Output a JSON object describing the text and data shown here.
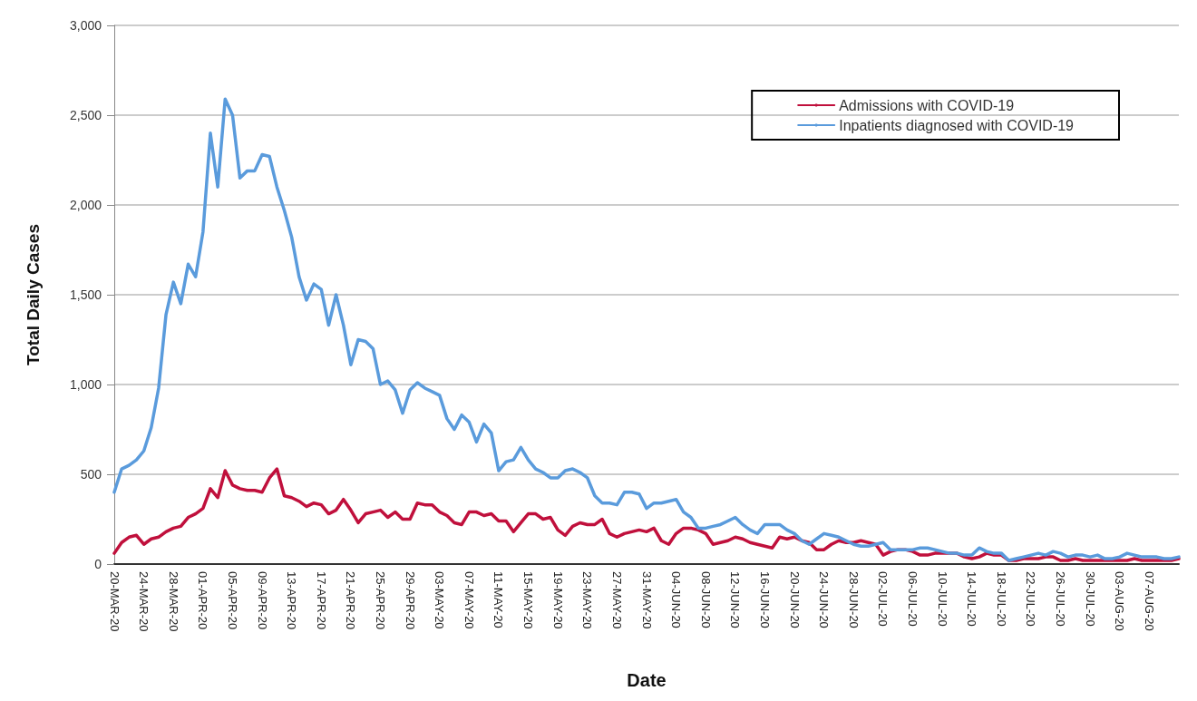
{
  "chart_data": {
    "type": "line",
    "xlabel": "Date",
    "ylabel": "Total Daily Cases",
    "categories": [
      "20-MAR-20",
      null,
      null,
      null,
      "24-MAR-20",
      null,
      null,
      null,
      "28-MAR-20",
      null,
      null,
      null,
      "01-APR-20",
      null,
      null,
      null,
      "05-APR-20",
      null,
      null,
      null,
      "09-APR-20",
      null,
      null,
      null,
      "13-APR-20",
      null,
      null,
      null,
      "17-APR-20",
      null,
      null,
      null,
      "21-APR-20",
      null,
      null,
      null,
      "25-APR-20",
      null,
      null,
      null,
      "29-APR-20",
      null,
      null,
      null,
      "03-MAY-20",
      null,
      null,
      null,
      "07-MAY-20",
      null,
      null,
      null,
      "11-MAY-20",
      null,
      null,
      null,
      "15-MAY-20",
      null,
      null,
      null,
      "19-MAY-20",
      null,
      null,
      null,
      "23-MAY-20",
      null,
      null,
      null,
      "27-MAY-20",
      null,
      null,
      null,
      "31-MAY-20",
      null,
      null,
      null,
      "04-JUN-20",
      null,
      null,
      null,
      "08-JUN-20",
      null,
      null,
      null,
      "12-JUN-20",
      null,
      null,
      null,
      "16-JUN-20",
      null,
      null,
      null,
      "20-JUN-20",
      null,
      null,
      null,
      "24-JUN-20",
      null,
      null,
      null,
      "28-JUN-20",
      null,
      null,
      null,
      "02-JUL-20",
      null,
      null,
      null,
      "06-JUL-20",
      null,
      null,
      null,
      "10-JUL-20",
      null,
      null,
      null,
      "14-JUL-20",
      null,
      null,
      null,
      "18-JUL-20",
      null,
      null,
      null,
      "22-JUL-20",
      null,
      null,
      null,
      "26-JUL-20",
      null,
      null,
      null,
      "30-JUL-20",
      null,
      null,
      null,
      "03-AUG-20",
      null,
      null,
      null,
      "07-AUG-20",
      null,
      null,
      null,
      null
    ],
    "series": [
      {
        "name": "Admissions with COVID-19",
        "color": "#c0103c",
        "values": [
          60,
          120,
          150,
          160,
          110,
          140,
          150,
          180,
          200,
          210,
          260,
          280,
          310,
          420,
          370,
          520,
          440,
          420,
          410,
          410,
          400,
          480,
          530,
          380,
          370,
          350,
          320,
          340,
          330,
          280,
          300,
          360,
          300,
          230,
          280,
          290,
          300,
          260,
          290,
          250,
          250,
          340,
          330,
          330,
          290,
          270,
          230,
          220,
          290,
          290,
          270,
          280,
          240,
          240,
          180,
          230,
          280,
          280,
          250,
          260,
          190,
          160,
          210,
          230,
          220,
          220,
          250,
          170,
          150,
          170,
          180,
          190,
          180,
          200,
          130,
          110,
          170,
          200,
          200,
          190,
          170,
          110,
          120,
          130,
          150,
          140,
          120,
          110,
          100,
          90,
          150,
          140,
          150,
          130,
          120,
          80,
          80,
          110,
          130,
          120,
          120,
          130,
          120,
          110,
          50,
          70,
          80,
          80,
          70,
          50,
          50,
          60,
          60,
          60,
          60,
          40,
          30,
          40,
          60,
          50,
          50,
          20,
          20,
          30,
          30,
          30,
          40,
          40,
          20,
          20,
          30,
          20,
          20,
          20,
          20,
          20,
          20,
          20,
          30,
          20,
          20,
          20,
          20,
          20,
          30
        ]
      },
      {
        "name": "Inpatients diagnosed with COVID-19",
        "color": "#5a9bdc",
        "values": [
          400,
          530,
          550,
          580,
          630,
          760,
          980,
          1390,
          1570,
          1450,
          1670,
          1600,
          1850,
          2400,
          2100,
          2590,
          2500,
          2150,
          2190,
          2190,
          2280,
          2270,
          2100,
          1970,
          1820,
          1600,
          1470,
          1560,
          1530,
          1330,
          1500,
          1330,
          1110,
          1250,
          1240,
          1200,
          1000,
          1020,
          970,
          840,
          970,
          1010,
          980,
          960,
          940,
          810,
          750,
          830,
          790,
          680,
          780,
          730,
          520,
          570,
          580,
          650,
          580,
          530,
          510,
          480,
          480,
          520,
          530,
          510,
          480,
          380,
          340,
          340,
          330,
          400,
          400,
          390,
          310,
          340,
          340,
          350,
          360,
          290,
          260,
          200,
          200,
          210,
          220,
          240,
          260,
          220,
          190,
          170,
          220,
          220,
          220,
          190,
          170,
          130,
          110,
          140,
          170,
          160,
          150,
          130,
          110,
          100,
          100,
          110,
          120,
          80,
          80,
          80,
          80,
          90,
          90,
          80,
          70,
          60,
          60,
          50,
          50,
          90,
          70,
          60,
          60,
          20,
          30,
          40,
          50,
          60,
          50,
          70,
          60,
          40,
          50,
          50,
          40,
          50,
          30,
          30,
          40,
          60,
          50,
          40,
          40,
          40,
          30,
          30,
          40
        ]
      }
    ],
    "ylim": [
      0,
      3000
    ],
    "yticks": [
      0,
      500,
      {
        "value": 1000,
        "label": "1,000"
      },
      {
        "value": 1500,
        "label": "1,500"
      },
      {
        "value": 2000,
        "label": "2,000"
      },
      {
        "value": 2500,
        "label": "2,500"
      },
      {
        "value": 3000,
        "label": "3,000"
      }
    ],
    "grid": "y",
    "legend": "top right",
    "marker": "none",
    "line_style": "solid"
  }
}
